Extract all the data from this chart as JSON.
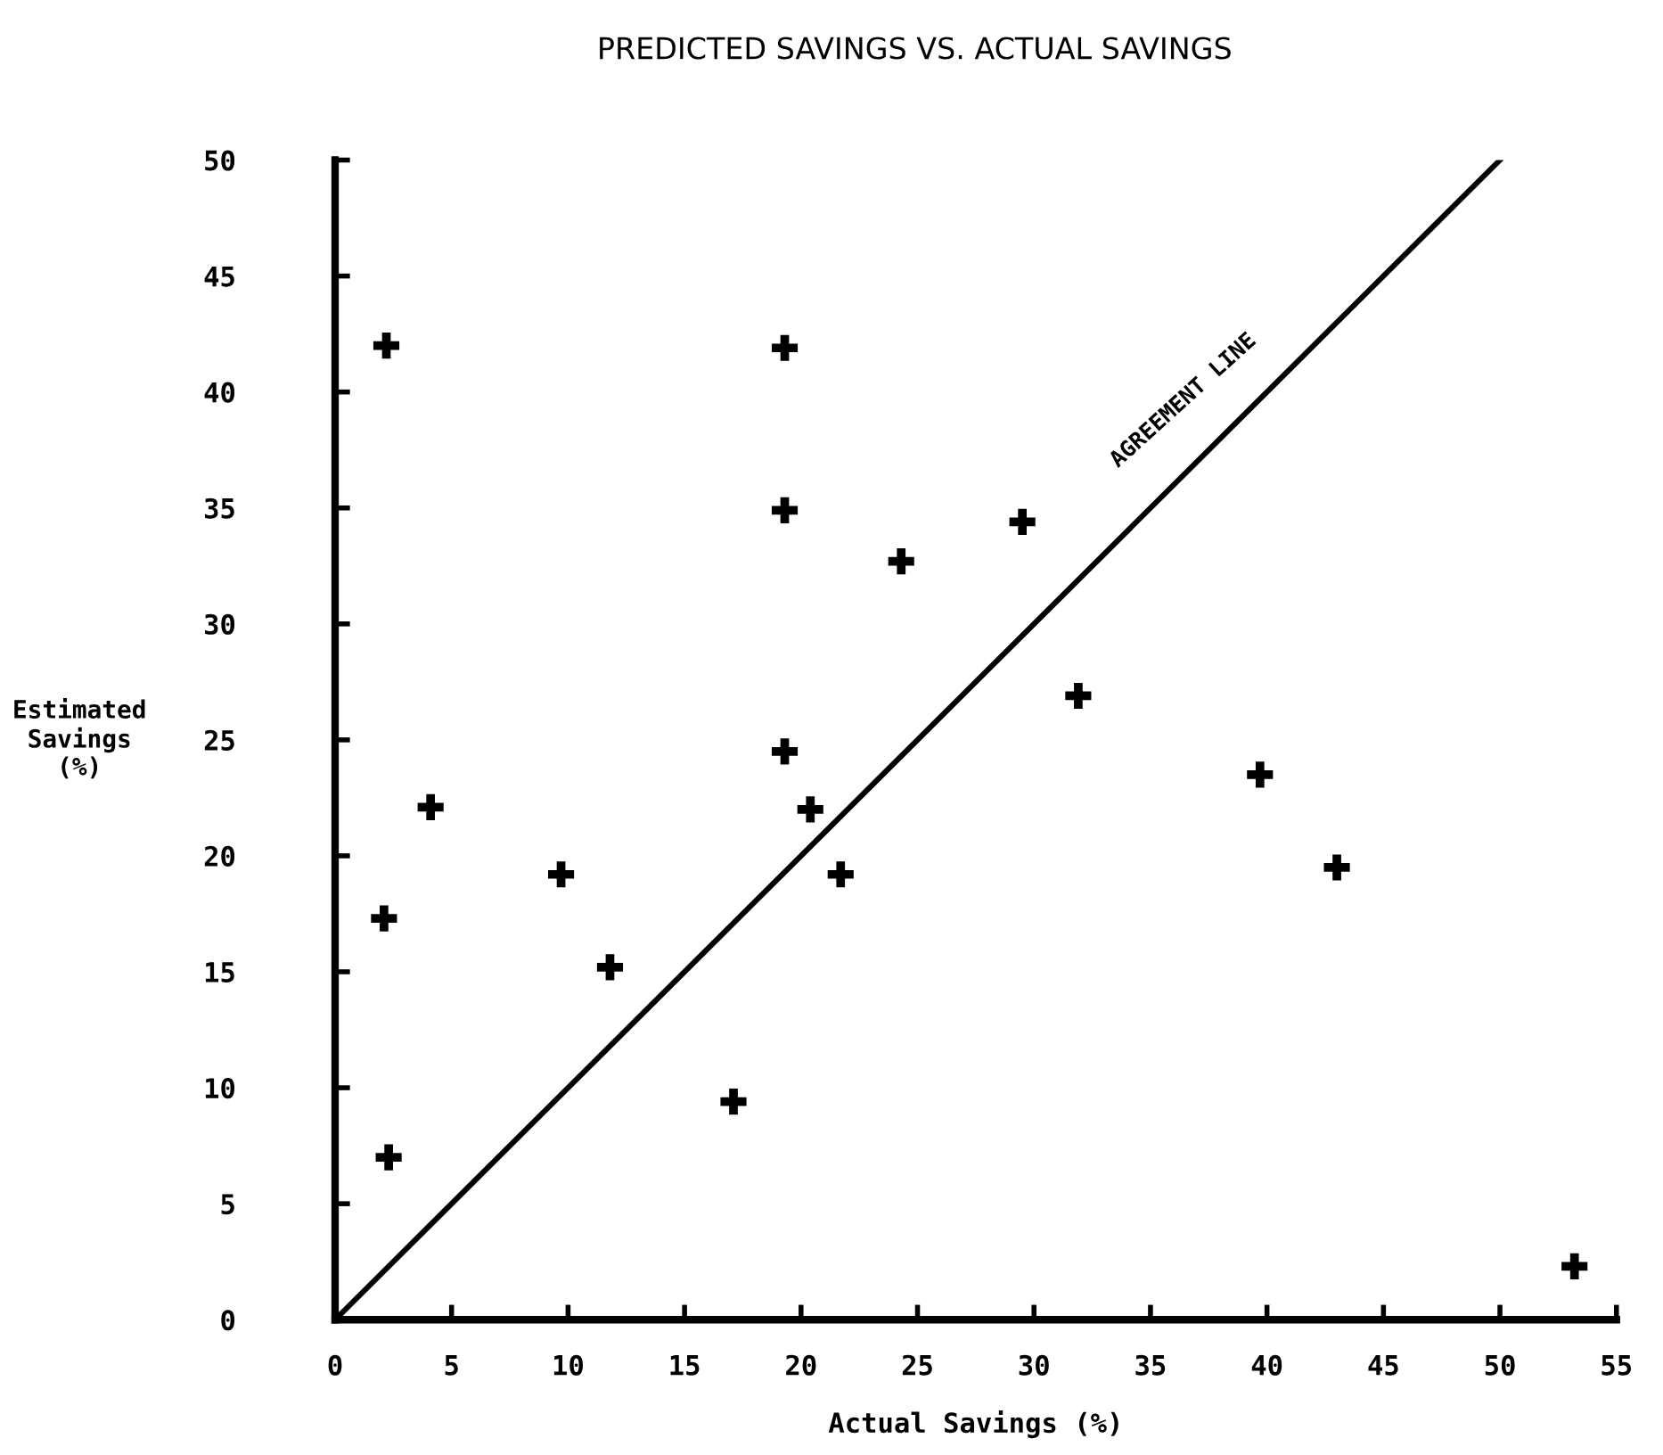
{
  "chart_data": {
    "type": "scatter",
    "title": "PREDICTED SAVINGS VS. ACTUAL SAVINGS",
    "xlabel": "Actual Savings (%)",
    "ylabel": "Estimated\nSavings\n(%)",
    "xlim": [
      0,
      55
    ],
    "ylim": [
      0,
      50
    ],
    "xticks": [
      0,
      5,
      10,
      15,
      20,
      25,
      30,
      35,
      40,
      45,
      50,
      55
    ],
    "yticks": [
      0,
      5,
      10,
      15,
      20,
      25,
      30,
      35,
      40,
      45,
      50
    ],
    "grid": false,
    "legend": false,
    "marker": "cross",
    "series": [
      {
        "color": "#000000",
        "x": [
          2.2,
          19.3,
          19.3,
          19.3,
          4.1,
          20.4,
          9.7,
          2.1,
          11.8,
          17.1,
          2.3,
          21.7,
          24.3,
          29.5,
          31.9,
          39.7,
          43.0,
          53.2
        ],
        "values": [
          42.0,
          41.9,
          34.9,
          24.5,
          22.1,
          22.0,
          19.2,
          17.3,
          15.2,
          9.4,
          7.0,
          19.2,
          32.7,
          34.4,
          26.9,
          23.5,
          19.5,
          2.3
        ]
      },
      {
        "type": "line",
        "name": "AGREEMENT LINE",
        "color": "#000000",
        "marker": "none",
        "line_style": "solid",
        "x": [
          0,
          50
        ],
        "values": [
          0,
          50
        ]
      }
    ]
  }
}
